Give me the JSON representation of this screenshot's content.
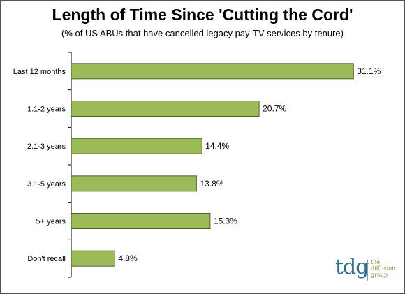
{
  "chart_data": {
    "type": "bar",
    "orientation": "horizontal",
    "title": "Length of Time Since 'Cutting the Cord'",
    "subtitle": "(% of US ABUs  that have cancelled legacy pay-TV services by tenure)",
    "categories": [
      "Last 12 months",
      "1.1-2 years",
      "2.1-3 years",
      "3.1-5 years",
      "5+ years",
      "Don't recall"
    ],
    "values": [
      31.1,
      20.7,
      14.4,
      13.8,
      15.3,
      4.8
    ],
    "value_labels": [
      "31.1%",
      "20.7%",
      "14.4%",
      "13.8%",
      "15.3%",
      "4.8%"
    ],
    "xlim": [
      0,
      34
    ],
    "grid": false,
    "bar_color": "#9bbb59",
    "bar_border_color": "#4f6228"
  },
  "logo": {
    "mark": "tdg",
    "tagline": [
      "the",
      "diffusion",
      "group"
    ],
    "mark_color": "#2e6f87",
    "tag_color": "#7a9a3e"
  }
}
